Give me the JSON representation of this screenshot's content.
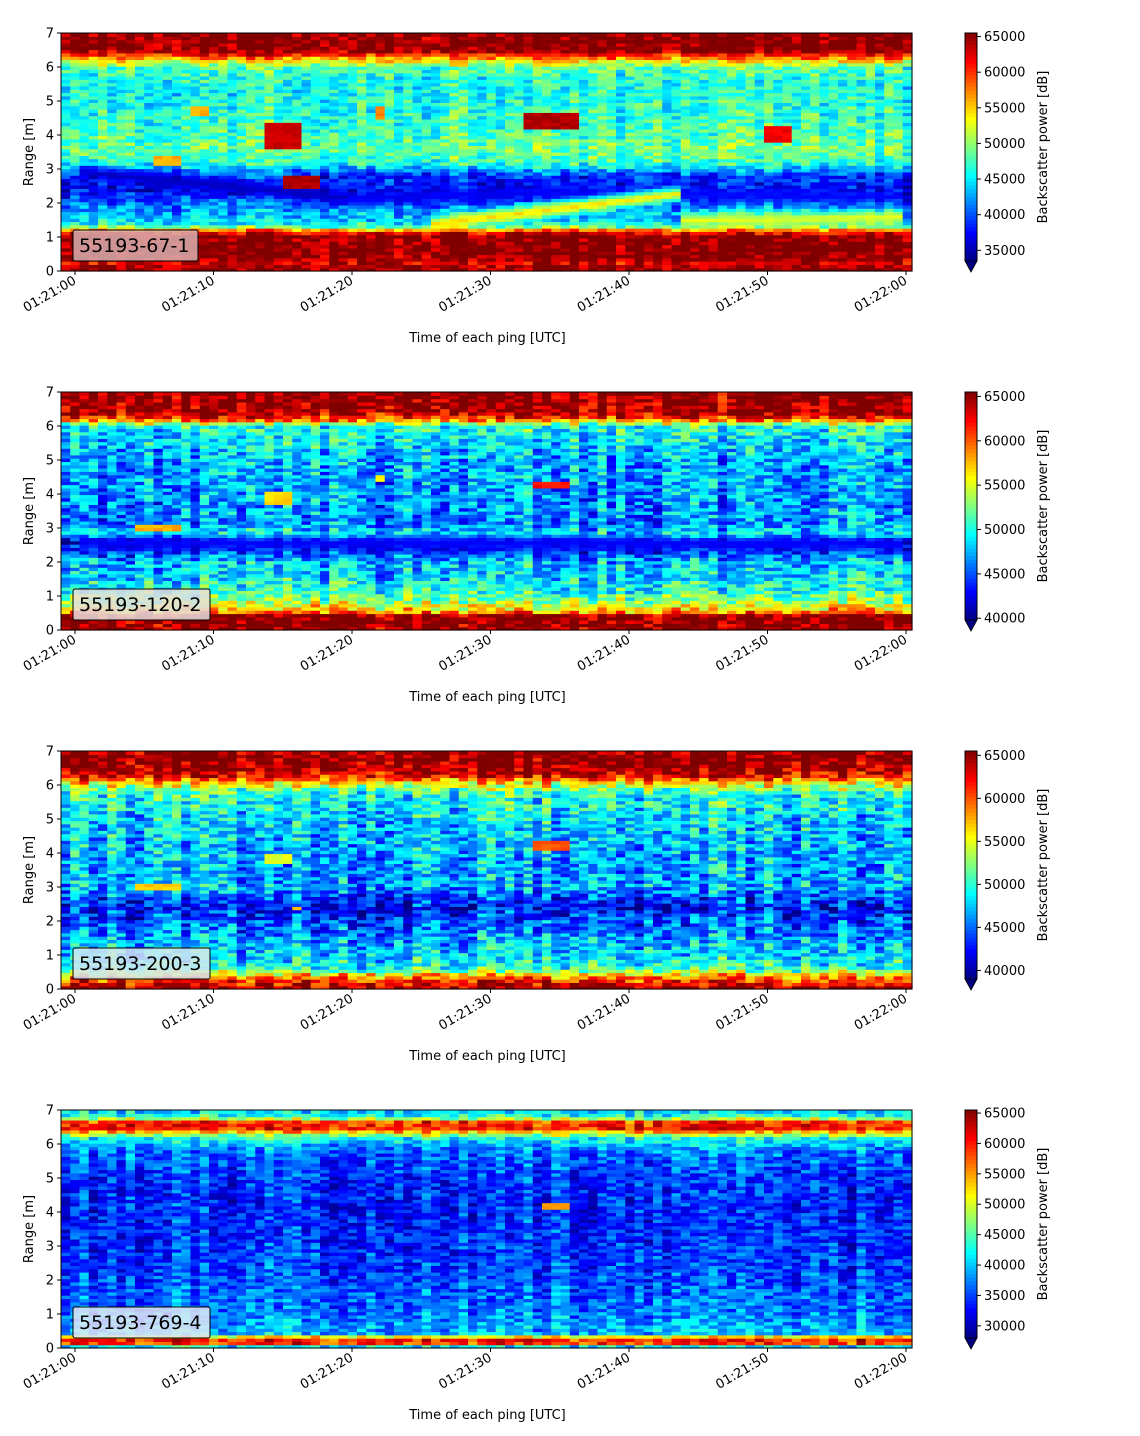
{
  "chart_data": [
    {
      "type": "heatmap",
      "label_box": "55193-67-1",
      "xlabel": "Time of each ping [UTC]",
      "ylabel": "Range [m]",
      "x_ticks": [
        "01:21:00",
        "01:21:10",
        "01:21:20",
        "01:21:30",
        "01:21:40",
        "01:21:50",
        "01:22:00"
      ],
      "x_range": [
        "01:21:00",
        "01:22:00"
      ],
      "y_ticks": [
        0,
        1,
        2,
        3,
        4,
        5,
        6,
        7
      ],
      "ylim": [
        0,
        7
      ],
      "colorbar": {
        "label": "Backscatter power [dB]",
        "ticks": [
          35000,
          40000,
          45000,
          50000,
          55000,
          60000,
          65000
        ],
        "range": [
          33500,
          65500
        ],
        "extend": "min",
        "colormap": "jet"
      },
      "label_box_color": "#d8aeae",
      "background_profile": [
        [
          0.0,
          65500
        ],
        [
          0.25,
          63000
        ],
        [
          0.45,
          65500
        ],
        [
          1.05,
          65500
        ],
        [
          1.2,
          58000
        ],
        [
          1.35,
          46000
        ],
        [
          1.6,
          44000
        ],
        [
          2.0,
          41000
        ],
        [
          2.4,
          37500
        ],
        [
          2.8,
          39000
        ],
        [
          3.2,
          47000
        ],
        [
          3.6,
          49000
        ],
        [
          4.0,
          48000
        ],
        [
          4.5,
          47000
        ],
        [
          5.0,
          46500
        ],
        [
          5.5,
          46000
        ],
        [
          6.0,
          48000
        ],
        [
          6.3,
          58000
        ],
        [
          6.5,
          65500
        ],
        [
          7.0,
          65500
        ]
      ],
      "features": [
        {
          "t0": 0,
          "t1": 20,
          "r0": 2.95,
          "r1": 2.15,
          "value": 35500
        },
        {
          "t0": 20,
          "t1": 36,
          "r0": 2.15,
          "r1": 2.35,
          "value": 37000
        },
        {
          "t0": 36,
          "t1": 60,
          "r0": 2.3,
          "r1": 2.2,
          "value": 37500
        },
        {
          "t0": 26,
          "t1": 44,
          "r0": 1.4,
          "r1": 2.3,
          "value": 55000
        },
        {
          "t0": 44,
          "t1": 60,
          "r0": 1.5,
          "r1": 1.6,
          "value": 53000
        }
      ],
      "blobs": [
        {
          "t0": 13.5,
          "t1": 16.5,
          "r0": 3.6,
          "r1": 4.4,
          "value": 63000
        },
        {
          "t0": 15,
          "t1": 18,
          "r0": 2.4,
          "r1": 2.8,
          "value": 64000
        },
        {
          "t0": 32.5,
          "t1": 36.5,
          "r0": 4.2,
          "r1": 4.7,
          "value": 64000
        },
        {
          "t0": 49.5,
          "t1": 51.5,
          "r0": 3.8,
          "r1": 4.3,
          "value": 62000
        },
        {
          "t0": 5.5,
          "t1": 7.5,
          "r0": 3.1,
          "r1": 3.4,
          "value": 56000
        },
        {
          "t0": 8.5,
          "t1": 10,
          "r0": 4.6,
          "r1": 4.9,
          "value": 56000
        },
        {
          "t0": 21.5,
          "t1": 22.5,
          "r0": 4.5,
          "r1": 4.9,
          "value": 57000
        }
      ],
      "noise": 3200,
      "seed": 11
    },
    {
      "type": "heatmap",
      "label_box": "55193-120-2",
      "xlabel": "Time of each ping [UTC]",
      "ylabel": "Range [m]",
      "x_ticks": [
        "01:21:00",
        "01:21:10",
        "01:21:20",
        "01:21:30",
        "01:21:40",
        "01:21:50",
        "01:22:00"
      ],
      "x_range": [
        "01:21:00",
        "01:22:00"
      ],
      "y_ticks": [
        0,
        1,
        2,
        3,
        4,
        5,
        6,
        7
      ],
      "ylim": [
        0,
        7
      ],
      "colorbar": {
        "label": "Backscatter power [dB]",
        "ticks": [
          40000,
          45000,
          50000,
          55000,
          60000,
          65000
        ],
        "range": [
          39800,
          65500
        ],
        "extend": "min",
        "colormap": "jet"
      },
      "label_box_color": "#e5dede",
      "background_profile": [
        [
          0.0,
          65500
        ],
        [
          0.15,
          65500
        ],
        [
          0.45,
          65500
        ],
        [
          0.55,
          58000
        ],
        [
          0.8,
          54000
        ],
        [
          1.2,
          50000
        ],
        [
          1.6,
          48500
        ],
        [
          2.0,
          48000
        ],
        [
          2.4,
          44000
        ],
        [
          2.6,
          42000
        ],
        [
          2.8,
          49000
        ],
        [
          3.2,
          46500
        ],
        [
          4.0,
          47000
        ],
        [
          5.0,
          47500
        ],
        [
          6.0,
          50000
        ],
        [
          6.2,
          60000
        ],
        [
          6.4,
          65000
        ],
        [
          7.0,
          65500
        ]
      ],
      "features": [
        {
          "t0": 0,
          "t1": 60,
          "r0": 2.55,
          "r1": 2.55,
          "value": 43000
        }
      ],
      "blobs": [
        {
          "t0": 33,
          "t1": 36,
          "r0": 4.15,
          "r1": 4.4,
          "value": 62000
        },
        {
          "t0": 4.5,
          "t1": 7.5,
          "r0": 2.95,
          "r1": 3.15,
          "value": 58000
        },
        {
          "t0": 13.5,
          "t1": 15.5,
          "r0": 3.7,
          "r1": 4.05,
          "value": 57000
        },
        {
          "t0": 21.5,
          "t1": 22.5,
          "r0": 4.4,
          "r1": 4.6,
          "value": 56000
        }
      ],
      "noise": 3400,
      "seed": 23
    },
    {
      "type": "heatmap",
      "label_box": "55193-200-3",
      "xlabel": "Time of each ping [UTC]",
      "ylabel": "Range [m]",
      "x_ticks": [
        "01:21:00",
        "01:21:10",
        "01:21:20",
        "01:21:30",
        "01:21:40",
        "01:21:50",
        "01:22:00"
      ],
      "x_range": [
        "01:21:00",
        "01:22:00"
      ],
      "y_ticks": [
        0,
        1,
        2,
        3,
        4,
        5,
        6,
        7
      ],
      "ylim": [
        0,
        7
      ],
      "colorbar": {
        "label": "Backscatter power [dB]",
        "ticks": [
          40000,
          45000,
          50000,
          55000,
          60000,
          65000
        ],
        "range": [
          39000,
          65500
        ],
        "extend": "min",
        "colormap": "jet"
      },
      "label_box_color": "#d4e6f2",
      "background_profile": [
        [
          0.0,
          65500
        ],
        [
          0.2,
          62000
        ],
        [
          0.4,
          58000
        ],
        [
          0.6,
          50000
        ],
        [
          1.0,
          48000
        ],
        [
          1.5,
          46500
        ],
        [
          2.0,
          44500
        ],
        [
          2.4,
          42500
        ],
        [
          2.7,
          44000
        ],
        [
          3.0,
          47000
        ],
        [
          3.5,
          46500
        ],
        [
          4.0,
          47000
        ],
        [
          5.0,
          48000
        ],
        [
          5.8,
          50000
        ],
        [
          6.1,
          57000
        ],
        [
          6.3,
          63000
        ],
        [
          6.6,
          65500
        ],
        [
          7.0,
          65500
        ]
      ],
      "features": [],
      "blobs": [
        {
          "t0": 33,
          "t1": 36,
          "r0": 4.1,
          "r1": 4.35,
          "value": 60000
        },
        {
          "t0": 4.5,
          "t1": 7.5,
          "r0": 2.95,
          "r1": 3.1,
          "value": 57000
        },
        {
          "t0": 13.5,
          "t1": 15.5,
          "r0": 3.7,
          "r1": 4.0,
          "value": 55000
        },
        {
          "t0": 15.5,
          "t1": 16.5,
          "r0": 2.3,
          "r1": 2.45,
          "value": 58000
        }
      ],
      "noise": 3600,
      "seed": 37
    },
    {
      "type": "heatmap",
      "label_box": "55193-769-4",
      "xlabel": "Time of each ping [UTC]",
      "ylabel": "Range [m]",
      "x_ticks": [
        "01:21:00",
        "01:21:10",
        "01:21:20",
        "01:21:30",
        "01:21:40",
        "01:21:50",
        "01:22:00"
      ],
      "x_range": [
        "01:21:00",
        "01:22:00"
      ],
      "y_ticks": [
        0,
        1,
        2,
        3,
        4,
        5,
        6,
        7
      ],
      "ylim": [
        0,
        7
      ],
      "colorbar": {
        "label": "Backscatter power [dB]",
        "ticks": [
          30000,
          35000,
          40000,
          45000,
          50000,
          55000,
          60000,
          65000
        ],
        "range": [
          28000,
          65500
        ],
        "extend": "min",
        "colormap": "jet"
      },
      "label_box_color": "#e2e6f4",
      "background_profile": [
        [
          0.0,
          33000
        ],
        [
          0.15,
          60000
        ],
        [
          0.3,
          60000
        ],
        [
          0.4,
          40000
        ],
        [
          0.8,
          38000
        ],
        [
          1.2,
          37000
        ],
        [
          2.0,
          35500
        ],
        [
          3.0,
          34500
        ],
        [
          4.0,
          34000
        ],
        [
          5.0,
          34500
        ],
        [
          5.8,
          37000
        ],
        [
          6.2,
          43000
        ],
        [
          6.45,
          60000
        ],
        [
          6.65,
          60000
        ],
        [
          6.8,
          44000
        ],
        [
          7.0,
          40000
        ]
      ],
      "features": [],
      "blobs": [
        {
          "t0": 33.5,
          "t1": 35.5,
          "r0": 4.05,
          "r1": 4.3,
          "value": 55000
        }
      ],
      "noise": 3800,
      "seed": 53
    }
  ]
}
